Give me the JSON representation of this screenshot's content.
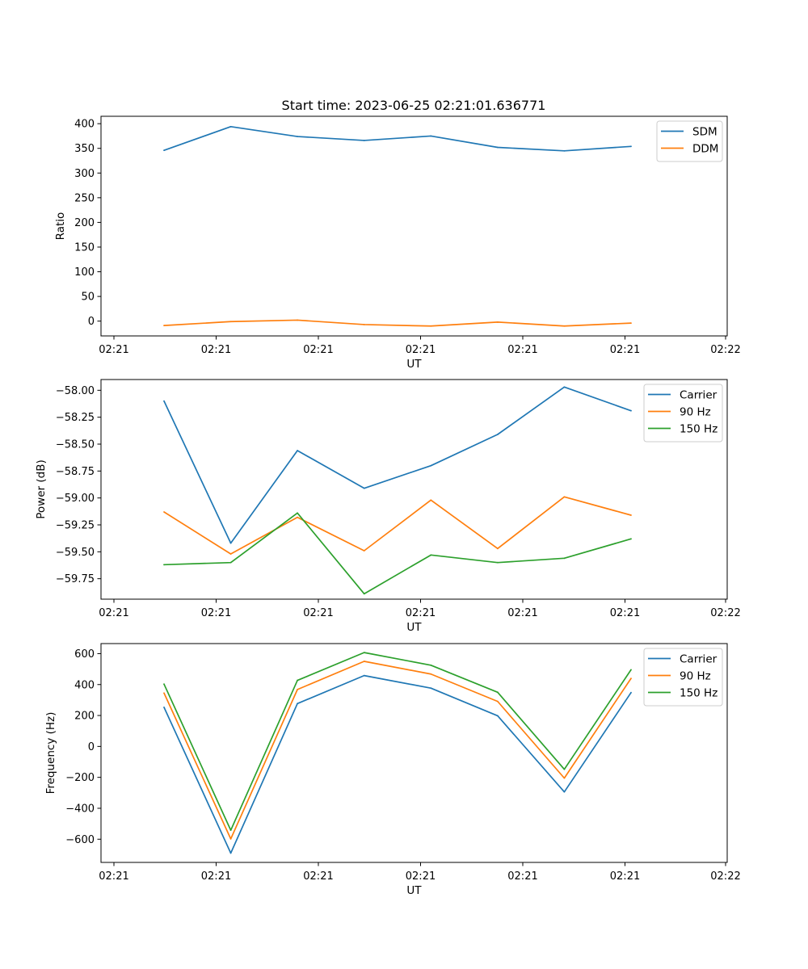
{
  "figure_title": "Start time: 2023-06-25 02:21:01.636771",
  "colors": {
    "blue": "#1f77b4",
    "orange": "#ff7f0e",
    "green": "#2ca02c"
  },
  "chart_data": [
    {
      "type": "line",
      "title": "Start time: 2023-06-25 02:21:01.636771",
      "xlabel": "UT",
      "ylabel": "Ratio",
      "x_ticks": [
        "02:21",
        "02:21",
        "02:21",
        "02:21",
        "02:21",
        "02:21",
        "02:22"
      ],
      "y_ticks": [
        "0",
        "50",
        "100",
        "150",
        "200",
        "250",
        "300",
        "350",
        "400"
      ],
      "ylim": [
        -30,
        415
      ],
      "legend_position": "top-right",
      "series": [
        {
          "name": "SDM",
          "color": "#1f77b4",
          "values": [
            346,
            394,
            374,
            366,
            375,
            352,
            345,
            354
          ]
        },
        {
          "name": "DDM",
          "color": "#ff7f0e",
          "values": [
            -9,
            -1,
            2,
            -7,
            -10,
            -2,
            -10,
            -4
          ]
        }
      ]
    },
    {
      "type": "line",
      "title": "",
      "xlabel": "UT",
      "ylabel": "Power (dB)",
      "x_ticks": [
        "02:21",
        "02:21",
        "02:21",
        "02:21",
        "02:21",
        "02:21",
        "02:22"
      ],
      "y_ticks": [
        "−58.00",
        "−58.25",
        "−58.50",
        "−58.75",
        "−59.00",
        "−59.25",
        "−59.50",
        "−59.75"
      ],
      "ylim": [
        -59.94,
        -57.9
      ],
      "legend_position": "top-right",
      "series": [
        {
          "name": "Carrier",
          "color": "#1f77b4",
          "values": [
            -58.1,
            -59.42,
            -58.56,
            -58.91,
            -58.7,
            -58.41,
            -57.97,
            -58.19
          ]
        },
        {
          "name": "90 Hz",
          "color": "#ff7f0e",
          "values": [
            -59.13,
            -59.52,
            -59.18,
            -59.49,
            -59.02,
            -59.47,
            -58.99,
            -59.16
          ]
        },
        {
          "name": "150 Hz",
          "color": "#2ca02c",
          "values": [
            -59.62,
            -59.6,
            -59.14,
            -59.89,
            -59.53,
            -59.6,
            -59.56,
            -59.38
          ]
        }
      ]
    },
    {
      "type": "line",
      "title": "",
      "xlabel": "UT",
      "ylabel": "Frequency (Hz)",
      "x_ticks": [
        "02:21",
        "02:21",
        "02:21",
        "02:21",
        "02:21",
        "02:21",
        "02:22"
      ],
      "y_ticks": [
        "−600",
        "−400",
        "−200",
        "0",
        "200",
        "400",
        "600"
      ],
      "ylim": [
        -750,
        665
      ],
      "legend_position": "top-right",
      "series": [
        {
          "name": "Carrier",
          "color": "#1f77b4",
          "values": [
            253,
            -690,
            277,
            458,
            377,
            198,
            -294,
            348
          ]
        },
        {
          "name": "90 Hz",
          "color": "#ff7f0e",
          "values": [
            345,
            -598,
            368,
            550,
            468,
            291,
            -205,
            440
          ]
        },
        {
          "name": "150 Hz",
          "color": "#2ca02c",
          "values": [
            403,
            -542,
            427,
            607,
            525,
            350,
            -148,
            496
          ]
        }
      ]
    }
  ]
}
